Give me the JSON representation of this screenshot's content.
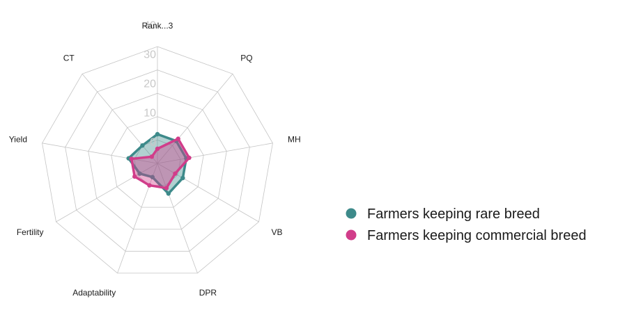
{
  "chart_data": {
    "type": "radar",
    "axes": [
      "Rank...3",
      "PQ",
      "MH",
      "VB",
      "DPR",
      "Adaptability",
      "Fertility",
      "Yield",
      "CT"
    ],
    "ticks": [
      "0",
      "10",
      "20",
      "30",
      "40"
    ],
    "rmax": 40,
    "grid": true,
    "legend_position": "right",
    "series": [
      {
        "name": "Farmers keeping rare breed",
        "color": "#3d8a8a",
        "values": [
          10,
          10,
          10,
          10,
          11,
          5,
          7,
          10,
          8
        ]
      },
      {
        "name": "Farmers keeping commercial breed",
        "color": "#d13d8a",
        "values": [
          5,
          11,
          11,
          7,
          9,
          8,
          9,
          9,
          3
        ]
      }
    ]
  }
}
